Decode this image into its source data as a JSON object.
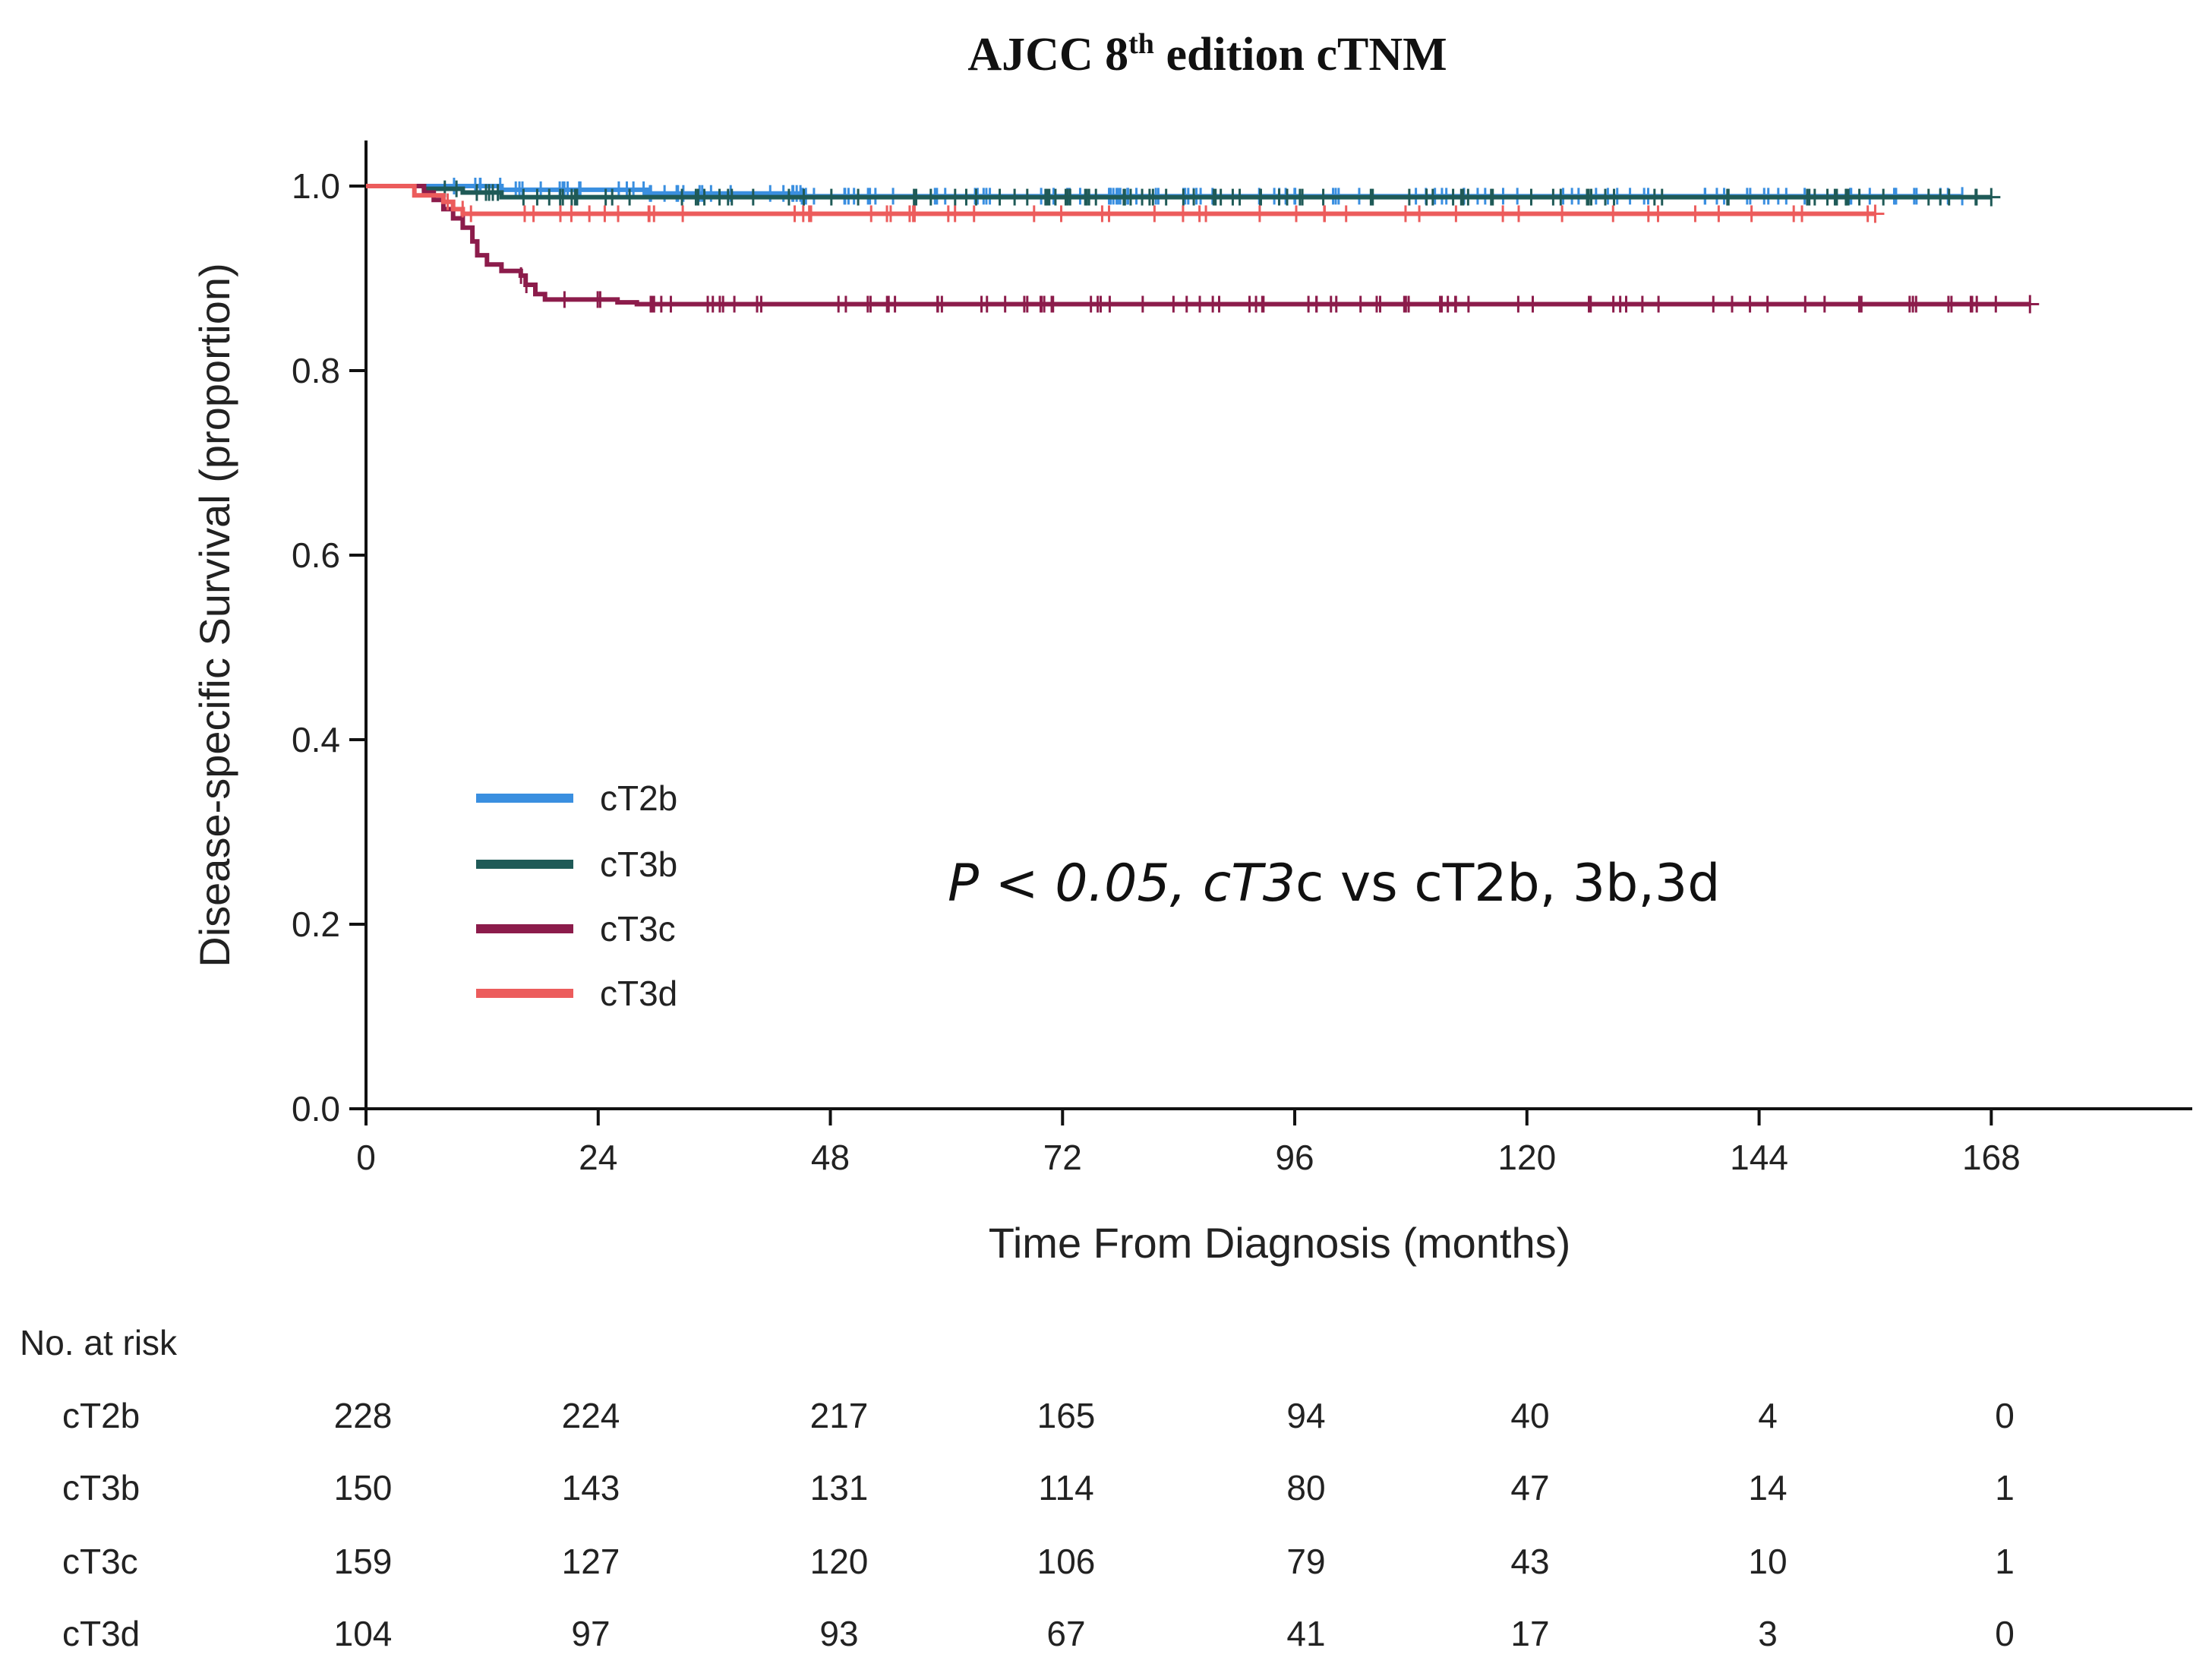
{
  "chart_data": {
    "type": "line",
    "subtype": "kaplan-meier",
    "title": "AJCC 8",
    "title_superscript": "th",
    "title_suffix": " edition cTNM",
    "xlabel": "Time From Diagnosis (months)",
    "ylabel": "Disease-specific Survival (proportion)",
    "xlim": [
      0,
      189
    ],
    "ylim": [
      0,
      1.05
    ],
    "xticks": [
      0,
      24,
      48,
      72,
      96,
      120,
      144,
      168
    ],
    "yticks": [
      0.0,
      0.2,
      0.4,
      0.6,
      0.8,
      1.0
    ],
    "ytick_labels": [
      "0.0",
      "0.2",
      "0.4",
      "0.6",
      "0.8",
      "1.0"
    ],
    "legend_position": "lower-left",
    "annotation": {
      "italic_part": "P < 0.05, cT3",
      "normal_part": "c vs cT2b, 3b,3d"
    },
    "series": [
      {
        "name": "cT2b",
        "color": "#3a8fe0",
        "steps": [
          [
            0,
            1.0
          ],
          [
            14,
            0.996
          ],
          [
            29,
            0.992
          ],
          [
            45,
            0.989
          ],
          [
            165,
            0.989
          ]
        ],
        "end": 165,
        "censor_density": 130
      },
      {
        "name": "cT3b",
        "color": "#1f5a57",
        "steps": [
          [
            0,
            1.0
          ],
          [
            6,
            0.997
          ],
          [
            10,
            0.993
          ],
          [
            14,
            0.988
          ],
          [
            168,
            0.988
          ]
        ],
        "end": 168,
        "censor_density": 110
      },
      {
        "name": "cT3c",
        "color": "#8c1c4b",
        "steps": [
          [
            0,
            1.0
          ],
          [
            6,
            0.993
          ],
          [
            7,
            0.985
          ],
          [
            8,
            0.975
          ],
          [
            9,
            0.965
          ],
          [
            10,
            0.955
          ],
          [
            11,
            0.94
          ],
          [
            11.5,
            0.925
          ],
          [
            12.5,
            0.915
          ],
          [
            14,
            0.908
          ],
          [
            16,
            0.903
          ],
          [
            16.5,
            0.893
          ],
          [
            17.5,
            0.883
          ],
          [
            18.5,
            0.877
          ],
          [
            26,
            0.874
          ],
          [
            28,
            0.872
          ],
          [
            172,
            0.872
          ]
        ],
        "end": 172,
        "censor_density": 95
      },
      {
        "name": "cT3d",
        "color": "#ec5c5c",
        "steps": [
          [
            0,
            1.0
          ],
          [
            5,
            0.99
          ],
          [
            8,
            0.983
          ],
          [
            9,
            0.975
          ],
          [
            10,
            0.97
          ],
          [
            156,
            0.97
          ]
        ],
        "end": 156,
        "censor_density": 55
      }
    ],
    "risk_table": {
      "title": "No. at risk",
      "timepoints": [
        0,
        24,
        48,
        72,
        96,
        120,
        144,
        168
      ],
      "rows": [
        {
          "name": "cT2b",
          "values": [
            228,
            224,
            217,
            165,
            94,
            40,
            4,
            0
          ]
        },
        {
          "name": "cT3b",
          "values": [
            150,
            143,
            131,
            114,
            80,
            47,
            14,
            1
          ]
        },
        {
          "name": "cT3c",
          "values": [
            159,
            127,
            120,
            106,
            79,
            43,
            10,
            1
          ]
        },
        {
          "name": "cT3d",
          "values": [
            104,
            97,
            93,
            67,
            41,
            17,
            3,
            0
          ]
        }
      ]
    }
  }
}
